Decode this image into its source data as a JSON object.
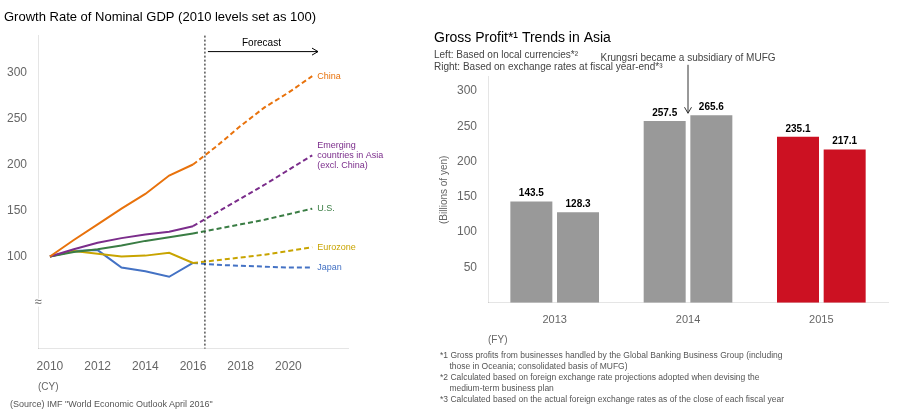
{
  "chart_data": [
    {
      "type": "line",
      "title": "Growth Rate of Nominal GDP (2010 levels set as 100)",
      "source": "(Source) IMF \"World Economic Outlook April 2016\"",
      "xlabel": "(CY)",
      "axis_break": "≈",
      "forecast": {
        "x": 2016.5,
        "label": "Forecast"
      },
      "x": [
        2010,
        2011,
        2012,
        2013,
        2014,
        2015,
        2016,
        2017,
        2018,
        2019,
        2020,
        2021
      ],
      "series": [
        {
          "name": "China",
          "color": "#E8720C",
          "values": [
            100,
            118,
            135,
            152,
            168,
            188,
            200,
            220,
            242,
            262,
            278,
            296
          ]
        },
        {
          "name": "Emerging\ncountries in Asia\n(excl. China)",
          "color": "#7B2D8B",
          "values": [
            100,
            108,
            115,
            120,
            124,
            127,
            133,
            148,
            163,
            178,
            194,
            210
          ]
        },
        {
          "name": "U.S.",
          "color": "#3A7D44",
          "values": [
            100,
            105,
            108,
            112,
            117,
            121,
            125,
            130,
            135,
            140,
            146,
            152
          ]
        },
        {
          "name": "Eurozone",
          "color": "#C8A400",
          "values": [
            100,
            106,
            103,
            100,
            101,
            104,
            93,
            96,
            99,
            102,
            106,
            110
          ]
        },
        {
          "name": "Japan",
          "color": "#4472C4",
          "values": [
            100,
            106,
            107,
            88,
            84,
            78,
            93,
            91,
            90,
            89,
            88,
            88
          ]
        }
      ],
      "xlim": [
        2009.5,
        2022.5
      ],
      "xticks": [
        2010,
        2012,
        2014,
        2016,
        2018,
        2020
      ],
      "ylim": [
        0,
        340
      ],
      "yticks": [
        100,
        150,
        200,
        250,
        300
      ],
      "grid": false
    },
    {
      "type": "bar",
      "title": "Gross Profit*¹ Trends in Asia",
      "subtitle": [
        "Left: Based on local currencies*²",
        "Right: Based on exchange rates at fiscal year-end*³"
      ],
      "annotation": {
        "text": "Krungsri became a subsidiary of MUFG",
        "category": "2014"
      },
      "xlabel": "(FY)",
      "ylabel": "(Billions of yen)",
      "categories": [
        "2013",
        "2014",
        "2015"
      ],
      "series": [
        {
          "values": [
            143.5,
            257.5,
            235.1
          ],
          "colors": [
            "#999999",
            "#999999",
            "#CC1122"
          ]
        },
        {
          "values": [
            128.3,
            265.6,
            217.1
          ],
          "colors": [
            "#999999",
            "#999999",
            "#CC1122"
          ]
        }
      ],
      "ylim": [
        0,
        320
      ],
      "yticks": [
        50,
        100,
        150,
        200,
        250,
        300
      ],
      "data_labels": true,
      "grid": false,
      "footnotes": "*1 Gross profits from businesses handled by the Global Banking Business Group (including\n    those in Oceania; consolidated basis of MUFG)\n*2 Calculated based on foreign exchange rate projections adopted when devising the\n    medium-term business plan\n*3 Calculated based on the actual foreign exchange rates as of the close of each fiscal year"
    }
  ]
}
